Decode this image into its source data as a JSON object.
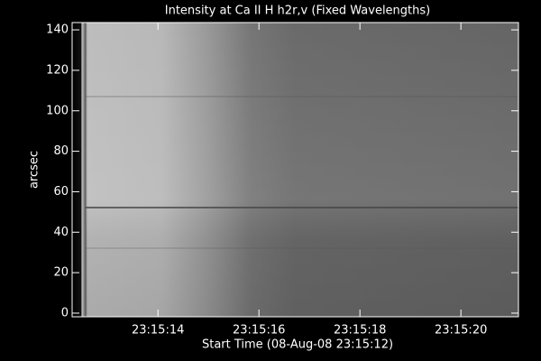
{
  "chart_data": {
    "type": "heatmap",
    "title": "Intensity at Ca II H h2r,v (Fixed Wavelengths)",
    "x_label": "Start Time (08-Aug-08 23:15:12)",
    "y_label": "arcsec",
    "xlim": [
      12.3,
      21.14
    ],
    "xticks": [
      {
        "value": 14,
        "label": "23:15:14"
      },
      {
        "value": 16,
        "label": "23:15:16"
      },
      {
        "value": 18,
        "label": "23:15:18"
      },
      {
        "value": 20,
        "label": "23:15:20"
      }
    ],
    "ylim": [
      -1.8,
      143.6
    ],
    "yticks": [
      0,
      20,
      40,
      60,
      80,
      100,
      120,
      140
    ]
  }
}
